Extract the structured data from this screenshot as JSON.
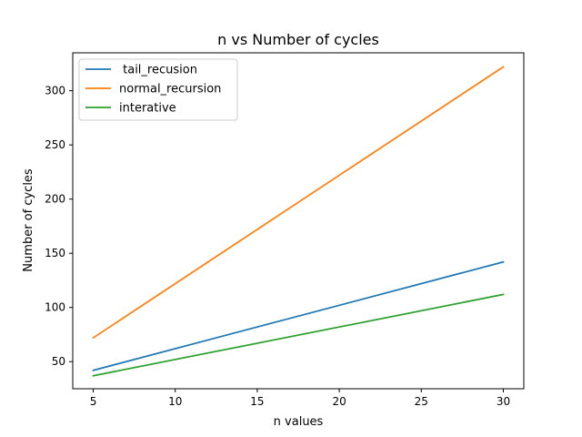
{
  "chart_data": {
    "type": "line",
    "title": "n vs Number of cycles",
    "xlabel": "n values",
    "ylabel": "Number of cycles",
    "x": [
      5,
      30
    ],
    "xlim": [
      3.75,
      31.25
    ],
    "ylim": [
      25,
      335
    ],
    "xticks": [
      5,
      10,
      15,
      20,
      25,
      30
    ],
    "yticks": [
      50,
      100,
      150,
      200,
      250,
      300
    ],
    "grid": false,
    "legend_position": "top-left",
    "series": [
      {
        "name": " tail_recusion",
        "color": "#1f77b4",
        "values": [
          42,
          142
        ]
      },
      {
        "name": "normal_recursion",
        "color": "#ff7f0e",
        "values": [
          72,
          322
        ]
      },
      {
        "name": "interative",
        "color": "#2ca02c",
        "values": [
          37,
          112
        ]
      }
    ]
  }
}
